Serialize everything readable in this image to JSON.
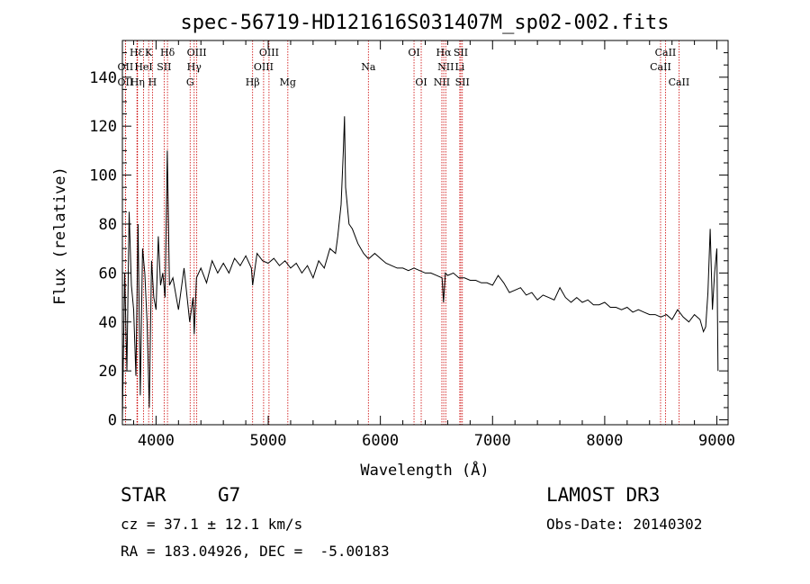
{
  "chart_data": {
    "type": "line",
    "title": "spec-56719-HD121616S031407M_sp02-002.fits",
    "xlabel": "Wavelength (Å)",
    "ylabel": "Flux (relative)",
    "xlim": [
      3700,
      9100
    ],
    "ylim": [
      -2,
      155
    ],
    "x_ticks": [
      4000,
      5000,
      6000,
      7000,
      8000,
      9000
    ],
    "y_ticks": [
      0,
      20,
      40,
      60,
      80,
      100,
      120,
      140
    ],
    "series": [
      {
        "name": "flux",
        "x": [
          3700,
          3720,
          3740,
          3760,
          3780,
          3800,
          3820,
          3840,
          3860,
          3880,
          3900,
          3920,
          3940,
          3960,
          3980,
          4000,
          4020,
          4040,
          4060,
          4080,
          4100,
          4120,
          4150,
          4200,
          4250,
          4300,
          4330,
          4340,
          4360,
          4400,
          4450,
          4500,
          4550,
          4600,
          4650,
          4700,
          4750,
          4800,
          4850,
          4861,
          4900,
          4950,
          5000,
          5050,
          5100,
          5150,
          5200,
          5250,
          5300,
          5350,
          5400,
          5450,
          5500,
          5550,
          5600,
          5620,
          5650,
          5670,
          5680,
          5690,
          5700,
          5720,
          5750,
          5800,
          5850,
          5890,
          5900,
          5950,
          6000,
          6050,
          6100,
          6150,
          6200,
          6250,
          6300,
          6350,
          6400,
          6450,
          6500,
          6550,
          6563,
          6580,
          6600,
          6650,
          6700,
          6750,
          6800,
          6850,
          6900,
          6950,
          7000,
          7050,
          7100,
          7150,
          7200,
          7250,
          7300,
          7350,
          7400,
          7450,
          7500,
          7550,
          7600,
          7650,
          7700,
          7750,
          7800,
          7850,
          7900,
          7950,
          8000,
          8050,
          8100,
          8150,
          8200,
          8250,
          8300,
          8350,
          8400,
          8450,
          8500,
          8550,
          8600,
          8650,
          8700,
          8750,
          8800,
          8850,
          8880,
          8900,
          8920,
          8940,
          8960,
          8980,
          9000,
          9010
        ],
        "values": [
          0,
          60,
          20,
          85,
          55,
          45,
          18,
          80,
          10,
          70,
          60,
          40,
          5,
          65,
          50,
          45,
          75,
          55,
          60,
          50,
          110,
          55,
          58,
          45,
          62,
          40,
          50,
          35,
          58,
          62,
          56,
          65,
          60,
          64,
          60,
          66,
          63,
          67,
          62,
          55,
          68,
          65,
          64,
          66,
          63,
          65,
          62,
          64,
          60,
          63,
          58,
          65,
          62,
          70,
          68,
          75,
          88,
          110,
          124,
          95,
          90,
          80,
          78,
          72,
          68,
          66,
          66,
          68,
          66,
          64,
          63,
          62,
          62,
          61,
          62,
          61,
          60,
          60,
          59,
          58,
          48,
          60,
          59,
          60,
          58,
          58,
          57,
          57,
          56,
          56,
          55,
          59,
          56,
          52,
          53,
          54,
          51,
          52,
          49,
          51,
          50,
          49,
          54,
          50,
          48,
          50,
          48,
          49,
          47,
          47,
          48,
          46,
          46,
          45,
          46,
          44,
          45,
          44,
          43,
          43,
          42,
          43,
          41,
          45,
          42,
          40,
          43,
          41,
          36,
          38,
          52,
          78,
          45,
          60,
          70,
          20
        ],
        "color": "#000000"
      }
    ],
    "spectral_lines": [
      {
        "name": "HƐ",
        "wavelength": 3830,
        "row": 1
      },
      {
        "name": "K",
        "wavelength": 3934,
        "row": 1
      },
      {
        "name": "Hδ",
        "wavelength": 4102,
        "row": 1
      },
      {
        "name": "OIII",
        "wavelength": 4363,
        "row": 1
      },
      {
        "name": "OIII",
        "wavelength": 5007,
        "row": 1
      },
      {
        "name": "OI",
        "wavelength": 6300,
        "row": 1
      },
      {
        "name": "Hα",
        "wavelength": 6565,
        "row": 1
      },
      {
        "name": "SII",
        "wavelength": 6717,
        "row": 1
      },
      {
        "name": "CaII",
        "wavelength": 8542,
        "row": 1
      },
      {
        "name": "OII",
        "wavelength": 3727,
        "row": 2
      },
      {
        "name": "HeI",
        "wavelength": 3889,
        "row": 2
      },
      {
        "name": "SII",
        "wavelength": 4072,
        "row": 2
      },
      {
        "name": "Hγ",
        "wavelength": 4340,
        "row": 2
      },
      {
        "name": "OIII",
        "wavelength": 4959,
        "row": 2
      },
      {
        "name": "Na",
        "wavelength": 5893,
        "row": 2
      },
      {
        "name": "NII",
        "wavelength": 6583,
        "row": 2
      },
      {
        "name": "Li",
        "wavelength": 6708,
        "row": 2
      },
      {
        "name": "CaII",
        "wavelength": 8498,
        "row": 2
      },
      {
        "name": "OII",
        "wavelength": 3727,
        "row": 3
      },
      {
        "name": "Hη",
        "wavelength": 3835,
        "row": 3
      },
      {
        "name": "H",
        "wavelength": 3968,
        "row": 3
      },
      {
        "name": "G",
        "wavelength": 4304,
        "row": 3
      },
      {
        "name": "Hβ",
        "wavelength": 4861,
        "row": 3
      },
      {
        "name": "Mg",
        "wavelength": 5175,
        "row": 3
      },
      {
        "name": "OI",
        "wavelength": 6364,
        "row": 3
      },
      {
        "name": "NII",
        "wavelength": 6548,
        "row": 3
      },
      {
        "name": "SII",
        "wavelength": 6731,
        "row": 3
      },
      {
        "name": "CaII",
        "wavelength": 8662,
        "row": 3
      }
    ],
    "line_marker_color": "#cc0000"
  },
  "info": {
    "object_class": "STAR",
    "subclass": "G7",
    "survey": "LAMOST DR3",
    "redshift": "cz = 37.1 ± 12.1 km/s",
    "obs_date": "Obs-Date: 20140302",
    "coords": "RA = 183.04926, DEC =  -5.00183"
  }
}
